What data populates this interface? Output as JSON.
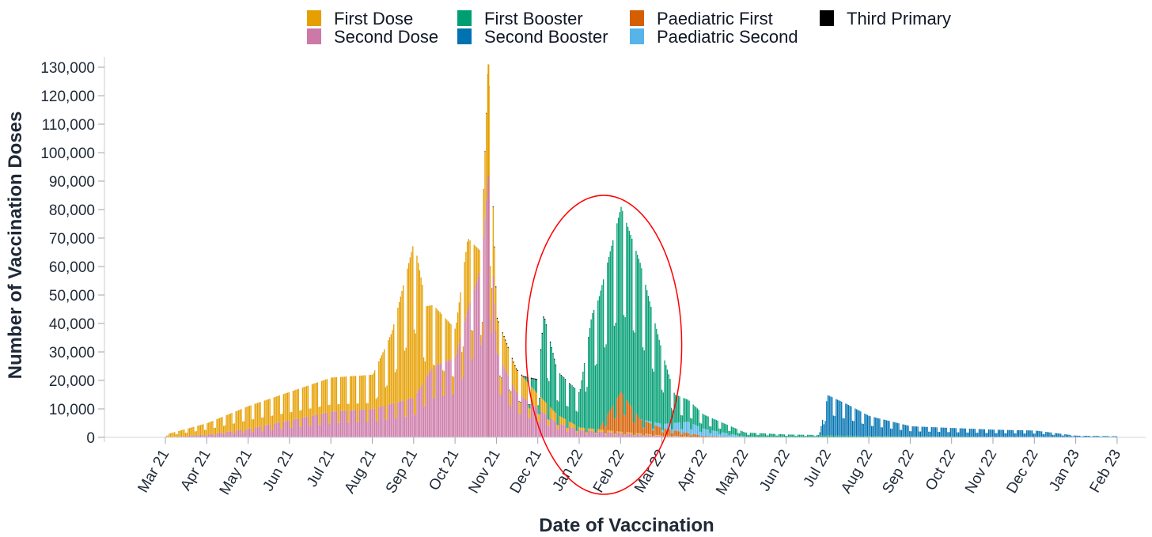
{
  "chart_data": {
    "type": "bar",
    "stacked": true,
    "xlabel": "Date of Vaccination",
    "ylabel": "Number of Vaccination Doses",
    "ylim": [
      0,
      135000
    ],
    "y_ticks": [
      0,
      10000,
      20000,
      30000,
      40000,
      50000,
      60000,
      70000,
      80000,
      90000,
      100000,
      110000,
      120000,
      130000
    ],
    "y_tick_labels": [
      "0",
      "10,000",
      "20,000",
      "30,000",
      "40,000",
      "50,000",
      "60,000",
      "70,000",
      "80,000",
      "90,000",
      "100,000",
      "110,000",
      "120,000",
      "130,000"
    ],
    "x_tick_labels": [
      "Mar 21",
      "Apr 21",
      "May 21",
      "Jun 21",
      "Jul 21",
      "Aug 21",
      "Sep 21",
      "Oct 21",
      "Nov 21",
      "Dec 21",
      "Jan 22",
      "Feb 22",
      "Mar 22",
      "Apr 22",
      "May 22",
      "Jun 22",
      "Jul 22",
      "Aug 22",
      "Sep 22",
      "Oct 22",
      "Nov 22",
      "Dec 22",
      "Jan 23",
      "Feb 23"
    ],
    "x_period": [
      "2021-03",
      "2023-02"
    ],
    "legend_position": "top",
    "legend": [
      {
        "name": "First Dose",
        "color": "#E69F00"
      },
      {
        "name": "Second Dose",
        "color": "#CC79A7"
      },
      {
        "name": "First Booster",
        "color": "#009E73"
      },
      {
        "name": "Second Booster",
        "color": "#0072B2"
      },
      {
        "name": "Paediatric First",
        "color": "#D55E00"
      },
      {
        "name": "Paediatric Second",
        "color": "#56B4E9"
      },
      {
        "name": "Third Primary",
        "color": "#000000"
      }
    ],
    "series": [
      {
        "name": "Second Dose",
        "color": "#CC79A7",
        "points": [
          [
            "2021-03",
            0
          ],
          [
            "2021-04",
            1000
          ],
          [
            "2021-05",
            3000
          ],
          [
            "2021-06",
            6000
          ],
          [
            "2021-07",
            9000
          ],
          [
            "2021-08",
            10000
          ],
          [
            "2021-09",
            14000
          ],
          [
            "2021-09-15",
            25000
          ],
          [
            "2021-10",
            28000
          ],
          [
            "2021-10-10",
            45000
          ],
          [
            "2021-10-20",
            60000
          ],
          [
            "2021-10-25",
            92000
          ],
          [
            "2021-11",
            30000
          ],
          [
            "2021-11-15",
            16000
          ],
          [
            "2021-12",
            10000
          ],
          [
            "2021-12-15",
            5000
          ],
          [
            "2022-01",
            2500
          ],
          [
            "2022-02",
            1500
          ],
          [
            "2022-03",
            500
          ],
          [
            "2022-04",
            0
          ]
        ]
      },
      {
        "name": "First Dose",
        "color": "#E69F00",
        "points": [
          [
            "2021-03",
            1000
          ],
          [
            "2021-04",
            4000
          ],
          [
            "2021-05",
            8000
          ],
          [
            "2021-06",
            10000
          ],
          [
            "2021-07",
            12000
          ],
          [
            "2021-08",
            12000
          ],
          [
            "2021-08-15",
            25000
          ],
          [
            "2021-09",
            55000
          ],
          [
            "2021-09-10",
            25000
          ],
          [
            "2021-10",
            10000
          ],
          [
            "2021-10-10",
            25000
          ],
          [
            "2021-10-20",
            5000
          ],
          [
            "2021-10-25",
            40000
          ],
          [
            "2021-11",
            12000
          ],
          [
            "2021-11-15",
            8000
          ],
          [
            "2021-12",
            5000
          ],
          [
            "2021-12-15",
            3000
          ],
          [
            "2022-01",
            1000
          ],
          [
            "2022-02",
            500
          ],
          [
            "2022-03",
            200
          ],
          [
            "2022-04",
            0
          ]
        ]
      },
      {
        "name": "First Booster",
        "color": "#009E73",
        "points": [
          [
            "2021-11-20",
            0
          ],
          [
            "2021-12",
            5000
          ],
          [
            "2021-12-05",
            30000
          ],
          [
            "2021-12-15",
            15000
          ],
          [
            "2022-01",
            12000
          ],
          [
            "2022-01-10",
            40000
          ],
          [
            "2022-02",
            65000
          ],
          [
            "2022-02-15",
            55000
          ],
          [
            "2022-03",
            25000
          ],
          [
            "2022-03-10",
            10000
          ],
          [
            "2022-04",
            5000
          ],
          [
            "2022-05",
            1500
          ],
          [
            "2022-06",
            1000
          ],
          [
            "2022-07",
            800
          ],
          [
            "2022-08",
            500
          ],
          [
            "2022-09",
            400
          ],
          [
            "2022-10",
            300
          ],
          [
            "2022-11",
            200
          ],
          [
            "2022-12",
            200
          ],
          [
            "2023-01",
            100
          ],
          [
            "2023-02",
            100
          ]
        ]
      },
      {
        "name": "Second Booster",
        "color": "#0072B2",
        "points": [
          [
            "2022-06-25",
            0
          ],
          [
            "2022-07",
            14000
          ],
          [
            "2022-07-15",
            11000
          ],
          [
            "2022-08",
            7000
          ],
          [
            "2022-09",
            3500
          ],
          [
            "2022-10",
            3000
          ],
          [
            "2022-11",
            2500
          ],
          [
            "2022-12",
            2200
          ],
          [
            "2023-01",
            500
          ],
          [
            "2023-02",
            300
          ]
        ]
      },
      {
        "name": "Paediatric First",
        "color": "#D55E00",
        "points": [
          [
            "2022-01-15",
            0
          ],
          [
            "2022-02",
            14000
          ],
          [
            "2022-02-15",
            5000
          ],
          [
            "2022-03",
            2500
          ],
          [
            "2022-04",
            500
          ],
          [
            "2022-05",
            0
          ]
        ]
      },
      {
        "name": "Paediatric Second",
        "color": "#56B4E9",
        "points": [
          [
            "2022-02-15",
            0
          ],
          [
            "2022-03",
            1500
          ],
          [
            "2022-03-20",
            4000
          ],
          [
            "2022-04",
            2500
          ],
          [
            "2022-05",
            200
          ],
          [
            "2022-06",
            0
          ]
        ]
      },
      {
        "name": "Third Primary",
        "color": "#000000",
        "points": [
          [
            "2021-10-15",
            0
          ],
          [
            "2021-11",
            300
          ],
          [
            "2021-12",
            400
          ],
          [
            "2022-01",
            100
          ],
          [
            "2022-02",
            0
          ]
        ]
      }
    ],
    "annotations": [
      {
        "type": "ellipse",
        "color": "#FF0000",
        "from": "2021-12",
        "to": "2022-03",
        "y_low": -20000,
        "y_high": 85000
      }
    ]
  }
}
